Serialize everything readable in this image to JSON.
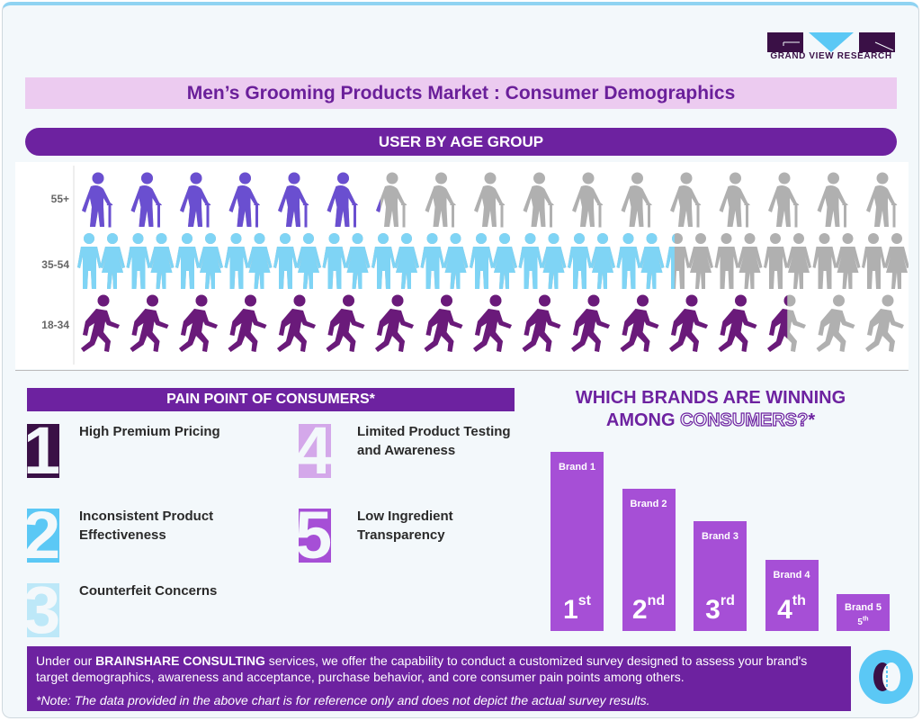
{
  "logo": {
    "text": "GRAND VIEW RESEARCH",
    "colors": {
      "dark": "#3a1046",
      "accent": "#5bc8f5"
    }
  },
  "title": "Men’s Grooming Products Market : Consumer Demographics",
  "age_section": {
    "header": "USER BY AGE GROUP"
  },
  "pain_section": {
    "header": "PAIN POINT OF CONSUMERS*",
    "items": [
      {
        "num": "1",
        "label": "High Premium Pricing",
        "color": "#3a1046"
      },
      {
        "num": "2",
        "label": "Inconsistent Product Effectiveness",
        "color": "#5bc8f5"
      },
      {
        "num": "3",
        "label": "Counterfeit Concerns",
        "color": "#bde8f8"
      },
      {
        "num": "4",
        "label": "Limited Product Testing and Awareness",
        "color": "#d4a8ea"
      },
      {
        "num": "5",
        "label": "Low Ingredient Transparency",
        "color": "#a64fd6"
      }
    ]
  },
  "brand_section": {
    "title_line1": "WHICH BRANDS ARE WINNING",
    "title_line2_a": "AMONG ",
    "title_line2_b": "CONSUMERS?",
    "title_line2_c": "*"
  },
  "chart_data": [
    {
      "type": "pictograph",
      "title": "USER BY AGE GROUP",
      "icons_per_row": 17,
      "categories": [
        "55+",
        "35-54",
        "18-34"
      ],
      "filled_icons": [
        6.2,
        12.2,
        14.5
      ],
      "colors": [
        "#6a4fd0",
        "#7fd4f5",
        "#6a1a7a"
      ],
      "empty_color": "#b0b0b0"
    },
    {
      "type": "bar",
      "title": "WHICH BRANDS ARE WINNING AMONG CONSUMERS?*",
      "categories": [
        "Brand 1",
        "Brand 2",
        "Brand 3",
        "Brand 4",
        "Brand 5"
      ],
      "ranks": [
        {
          "n": "1",
          "suffix": "st"
        },
        {
          "n": "2",
          "suffix": "nd"
        },
        {
          "n": "3",
          "suffix": "rd"
        },
        {
          "n": "4",
          "suffix": "th"
        },
        {
          "n": "5",
          "suffix": "th"
        }
      ],
      "color": "#a64fd6"
    }
  ],
  "footer": {
    "pre": "Under our ",
    "bold": "BRAINSHARE CONSULTING",
    "post": " services, we offer the capability to conduct a customized survey designed to assess your brand's target demographics, awareness and acceptance, purchase behavior, and core consumer pain points among others.",
    "note": "*Note: The data provided in the above chart is for reference only and does not depict the actual survey results."
  }
}
